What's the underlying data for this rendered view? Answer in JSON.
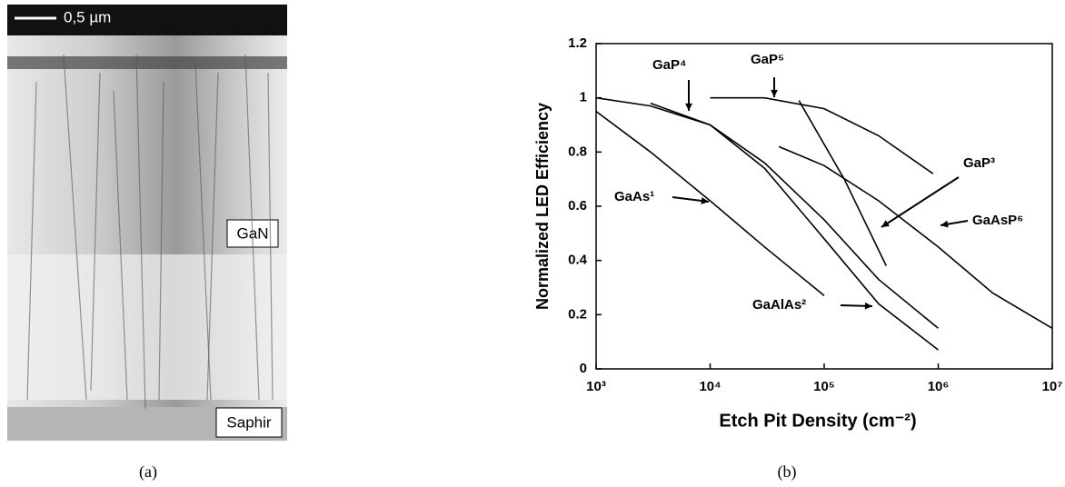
{
  "panel_a": {
    "scale_label": "0,5 µm",
    "layer_top": "GaN",
    "layer_bottom": "Saphir",
    "caption": "(a)"
  },
  "chart_data": {
    "type": "line",
    "caption": "(b)",
    "x_label": "Etch Pit Density (cm⁻²)",
    "y_label": "Normalized LED Efficiency",
    "log_x": true,
    "xlim": [
      1000,
      10000000
    ],
    "xticks": [
      {
        "value": 1000,
        "label": "10³"
      },
      {
        "value": 10000,
        "label": "10⁴"
      },
      {
        "value": 100000,
        "label": "10⁵"
      },
      {
        "value": 1000000,
        "label": "10⁶"
      },
      {
        "value": 10000000,
        "label": "10⁷"
      }
    ],
    "ylim": [
      0,
      1.2
    ],
    "yticks": [
      0,
      0.2,
      0.4,
      0.6,
      0.8,
      1,
      1.2
    ],
    "color": "#000000",
    "series": [
      {
        "name": "GaAs¹",
        "x": [
          1000,
          3000,
          10000,
          30000,
          100000
        ],
        "values": [
          0.95,
          0.8,
          0.62,
          0.45,
          0.27
        ]
      },
      {
        "name": "GaAlAs²",
        "x": [
          1000,
          3000,
          10000,
          30000,
          100000,
          300000,
          1000000
        ],
        "values": [
          1.0,
          0.97,
          0.9,
          0.74,
          0.48,
          0.24,
          0.07
        ]
      },
      {
        "name": "GaP³",
        "x": [
          60000,
          150000,
          350000
        ],
        "values": [
          0.99,
          0.7,
          0.38
        ]
      },
      {
        "name": "GaP⁴",
        "x": [
          3000,
          10000,
          30000,
          100000,
          300000,
          1000000
        ],
        "values": [
          0.98,
          0.9,
          0.76,
          0.55,
          0.33,
          0.15
        ]
      },
      {
        "name": "GaP⁵",
        "x": [
          10000,
          30000,
          100000,
          300000,
          900000
        ],
        "values": [
          1.0,
          1.0,
          0.96,
          0.86,
          0.72
        ]
      },
      {
        "name": "GaAsP⁶",
        "x": [
          40000,
          100000,
          300000,
          1000000,
          3000000,
          10000000
        ],
        "values": [
          0.82,
          0.75,
          0.62,
          0.45,
          0.28,
          0.15
        ]
      }
    ]
  }
}
